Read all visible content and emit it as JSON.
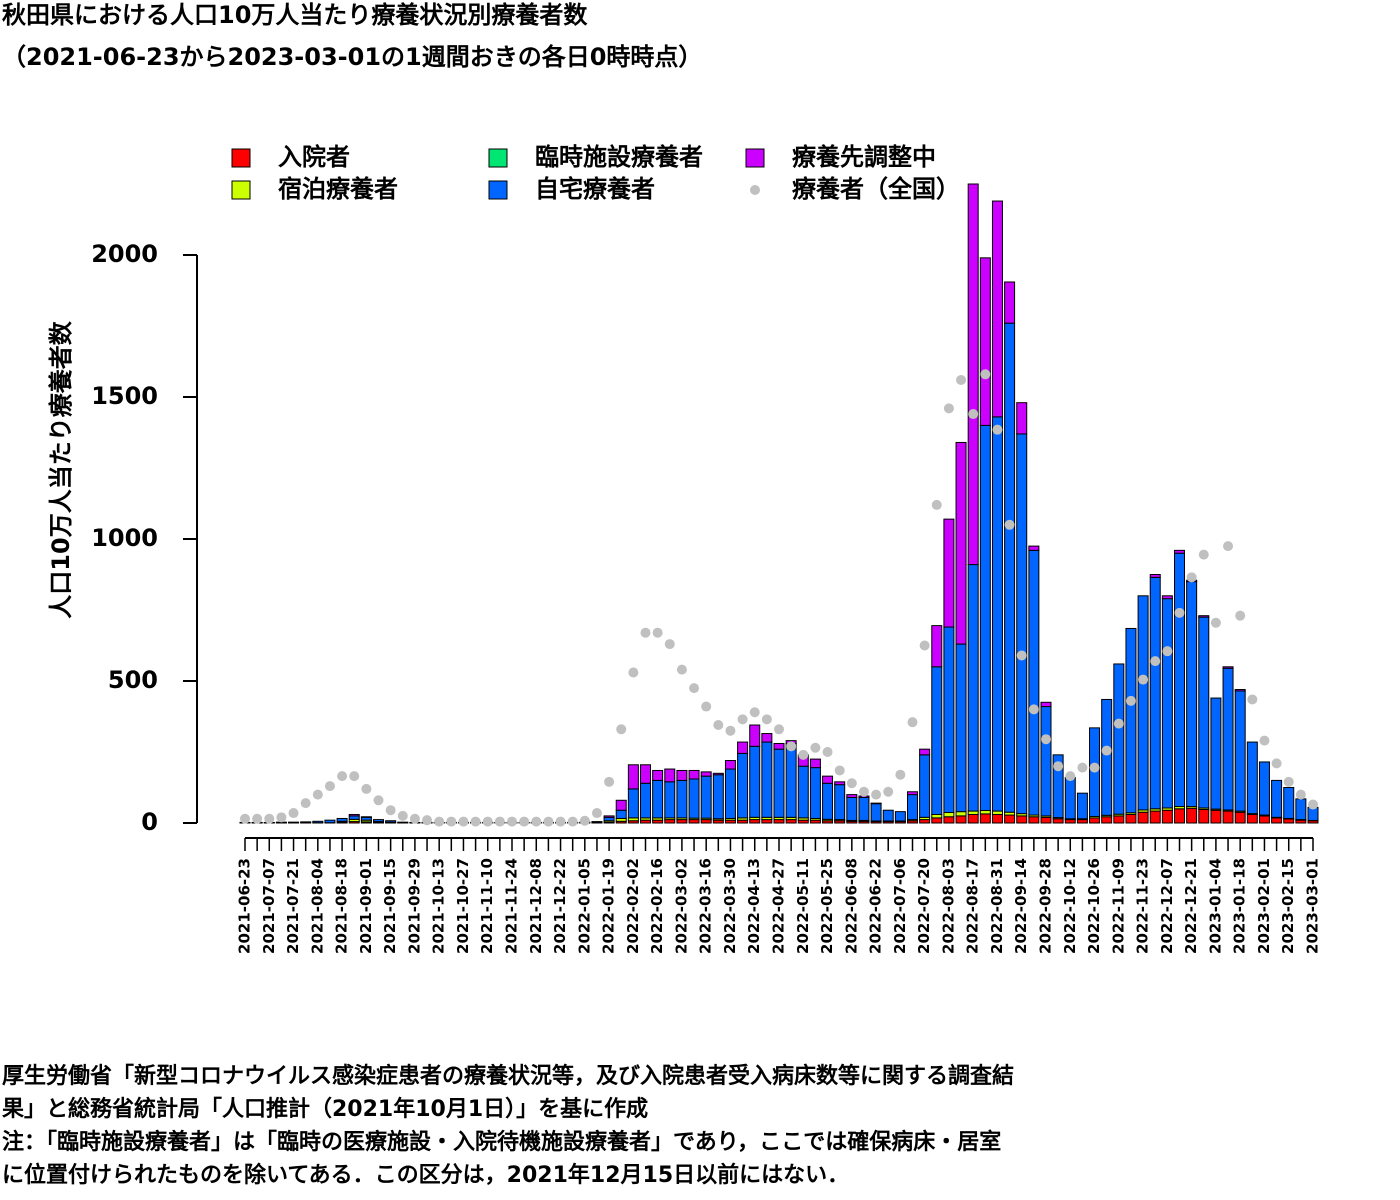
{
  "chart_data": {
    "type": "stacked_bar",
    "title": "秋田県における人口10万人当たり療養状況別療養者数",
    "subtitle": "（2021-06-23から2023-03-01の1週間おきの各日0時時点）",
    "y_label": "人口10万人当たり療養者数",
    "notes": [
      "厚生労働省「新型コロナウイルス感染症患者の療養状況等，及び入院患者受入病床数等に関する調査結",
      "果」と総務省統計局「人口推計（2021年10月1日）」を基に作成",
      "注：「臨時施設療養者」は「臨時の医療施設・入院待機施設療養者」であり，ここでは確保病床・居室",
      "に位置付けられたものを除いてある．この区分は，2021年12月15日以前にはない．"
    ],
    "ylim": [
      0,
      2000
    ],
    "yticks": [
      0,
      500,
      1000,
      1500,
      2000
    ],
    "categories": [
      "2021-06-23",
      null,
      "2021-07-07",
      null,
      "2021-07-21",
      null,
      "2021-08-04",
      null,
      "2021-08-18",
      null,
      "2021-09-01",
      null,
      "2021-09-15",
      null,
      "2021-09-29",
      null,
      "2021-10-13",
      null,
      "2021-10-27",
      null,
      "2021-11-10",
      null,
      "2021-11-24",
      null,
      "2021-12-08",
      null,
      "2021-12-22",
      null,
      "2022-01-05",
      null,
      "2022-01-19",
      null,
      "2022-02-02",
      null,
      "2022-02-16",
      null,
      "2022-03-02",
      null,
      "2022-03-16",
      null,
      "2022-03-30",
      null,
      "2022-04-13",
      null,
      "2022-04-27",
      null,
      "2022-05-11",
      null,
      "2022-05-25",
      null,
      "2022-06-08",
      null,
      "2022-06-22",
      null,
      "2022-07-06",
      null,
      "2022-07-20",
      null,
      "2022-08-03",
      null,
      "2022-08-17",
      null,
      "2022-08-31",
      null,
      "2022-09-14",
      null,
      "2022-09-28",
      null,
      "2022-10-12",
      null,
      "2022-10-26",
      null,
      "2022-11-09",
      null,
      "2022-11-23",
      null,
      "2022-12-07",
      null,
      "2022-12-21",
      null,
      "2023-01-04",
      null,
      "2023-01-18",
      null,
      "2023-02-01",
      null,
      "2023-02-15",
      null,
      "2023-03-01"
    ],
    "series": [
      {
        "name": "入院者",
        "color": "#ff0000",
        "values": [
          1,
          1,
          1,
          1,
          1,
          1,
          1,
          1,
          3,
          5,
          4,
          2,
          2,
          1,
          1,
          1,
          1,
          1,
          1,
          1,
          1,
          1,
          1,
          1,
          1,
          1,
          1,
          1,
          1,
          1,
          3,
          6,
          8,
          10,
          10,
          12,
          12,
          12,
          12,
          10,
          10,
          10,
          12,
          12,
          12,
          12,
          10,
          10,
          8,
          8,
          6,
          6,
          5,
          5,
          5,
          8,
          12,
          18,
          22,
          25,
          30,
          32,
          30,
          28,
          25,
          22,
          20,
          15,
          12,
          12,
          18,
          22,
          25,
          30,
          38,
          42,
          45,
          50,
          52,
          48,
          45,
          42,
          38,
          30,
          25,
          18,
          14,
          10,
          8
        ]
      },
      {
        "name": "宿泊療養者",
        "color": "#ccff00",
        "values": [
          0,
          0,
          0,
          0,
          0,
          0,
          0,
          0,
          3,
          8,
          6,
          3,
          1,
          0,
          0,
          0,
          0,
          0,
          0,
          0,
          0,
          0,
          0,
          0,
          0,
          0,
          0,
          0,
          0,
          1,
          5,
          10,
          10,
          8,
          8,
          6,
          6,
          5,
          5,
          5,
          6,
          8,
          8,
          8,
          8,
          8,
          8,
          6,
          5,
          4,
          3,
          3,
          2,
          2,
          2,
          4,
          8,
          12,
          15,
          15,
          12,
          12,
          12,
          10,
          8,
          6,
          5,
          4,
          3,
          3,
          5,
          5,
          6,
          6,
          8,
          8,
          8,
          8,
          6,
          5,
          4,
          4,
          4,
          3,
          3,
          2,
          2,
          2,
          1
        ]
      },
      {
        "name": "臨時施設療養者",
        "color": "#00e673",
        "values": [
          null,
          null,
          null,
          null,
          null,
          null,
          null,
          null,
          null,
          null,
          null,
          null,
          null,
          null,
          null,
          null,
          null,
          null,
          null,
          null,
          null,
          null,
          null,
          null,
          null,
          null,
          0,
          0,
          0,
          0,
          0,
          0,
          0,
          0,
          0,
          0,
          0,
          0,
          0,
          0,
          0,
          0,
          0,
          0,
          0,
          0,
          0,
          0,
          0,
          0,
          0,
          0,
          0,
          0,
          0,
          0,
          0,
          0,
          0,
          0,
          0,
          0,
          0,
          0,
          0,
          0,
          0,
          0,
          0,
          0,
          0,
          0,
          0,
          0,
          0,
          0,
          0,
          0,
          0,
          0,
          0,
          0,
          0,
          0,
          0,
          0,
          0,
          0,
          0
        ]
      },
      {
        "name": "自宅療養者",
        "color": "#0066ff",
        "values": [
          1,
          1,
          1,
          2,
          2,
          3,
          5,
          9,
          10,
          12,
          10,
          7,
          5,
          2,
          1,
          1,
          1,
          1,
          1,
          1,
          1,
          1,
          1,
          1,
          1,
          1,
          1,
          1,
          2,
          3,
          12,
          29,
          102,
          122,
          132,
          127,
          132,
          138,
          148,
          155,
          174,
          227,
          250,
          265,
          240,
          260,
          182,
          179,
          127,
          123,
          81,
          81,
          61,
          38,
          33,
          88,
          220,
          520,
          653,
          590,
          868,
          1356,
          1388,
          1722,
          1337,
          932,
          385,
          221,
          145,
          90,
          312,
          408,
          529,
          649,
          754,
          815,
          737,
          892,
          792,
          672,
          391,
          499,
          423,
          252,
          187,
          130,
          109,
          73,
          46
        ]
      },
      {
        "name": "療養先調整中",
        "color": "#cc00ff",
        "values": [
          0,
          0,
          0,
          0,
          0,
          0,
          0,
          0,
          0,
          5,
          2,
          0,
          0,
          0,
          0,
          0,
          0,
          0,
          0,
          0,
          0,
          0,
          0,
          0,
          0,
          0,
          0,
          0,
          0,
          0,
          5,
          35,
          85,
          65,
          35,
          45,
          35,
          30,
          15,
          5,
          30,
          40,
          75,
          30,
          20,
          10,
          40,
          30,
          25,
          10,
          10,
          5,
          2,
          0,
          0,
          10,
          20,
          145,
          380,
          710,
          1340,
          590,
          760,
          145,
          110,
          15,
          15,
          0,
          0,
          0,
          0,
          0,
          0,
          0,
          0,
          10,
          10,
          10,
          5,
          5,
          0,
          5,
          5,
          0,
          0,
          0,
          0,
          0,
          0
        ]
      },
      {
        "name": "療養者（全国）",
        "color": "#c0c0c0",
        "type": "points",
        "values": [
          15,
          15,
          15,
          20,
          35,
          70,
          100,
          130,
          165,
          165,
          120,
          80,
          45,
          25,
          15,
          10,
          5,
          5,
          5,
          5,
          5,
          5,
          5,
          5,
          5,
          5,
          5,
          5,
          8,
          35,
          145,
          330,
          530,
          670,
          670,
          630,
          540,
          475,
          410,
          345,
          325,
          365,
          390,
          365,
          330,
          270,
          240,
          265,
          250,
          185,
          140,
          110,
          100,
          110,
          170,
          355,
          625,
          1120,
          1460,
          1560,
          1440,
          1580,
          1385,
          1050,
          590,
          400,
          295,
          200,
          165,
          195,
          195,
          255,
          350,
          430,
          505,
          570,
          605,
          740,
          865,
          945,
          705,
          975,
          730,
          435,
          290,
          210,
          145,
          100,
          65
        ]
      }
    ]
  }
}
